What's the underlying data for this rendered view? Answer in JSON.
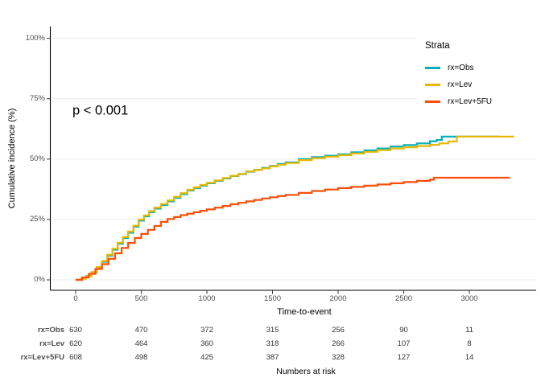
{
  "chart_data": {
    "type": "line",
    "subtype": "kaplan-meier-step-cumulative-incidence",
    "x_title": "Time-to-event",
    "y_title": "Cumulative incidence (%)",
    "p_value_annotation": "p < 0.001",
    "x_ticks": [
      0,
      500,
      1000,
      1500,
      2000,
      2500,
      3000
    ],
    "y_ticks_percent": [
      0,
      25,
      50,
      75,
      100
    ],
    "y_tick_labels": [
      "0%",
      "25%",
      "50%",
      "75%",
      "100%"
    ],
    "xlim": [
      0,
      3500
    ],
    "ylim_percent": [
      0,
      100
    ],
    "grid": "horizontal-only",
    "gridline_color": "#EBEBEB",
    "axis_color": "#000000",
    "tick_label_color": "#4d4d4d",
    "legend_position": "top-right-inside",
    "series": [
      {
        "name": "rx=Obs",
        "color": "#00AFBB",
        "points": [
          [
            0,
            0
          ],
          [
            40,
            0.6
          ],
          [
            80,
            1.6
          ],
          [
            120,
            3
          ],
          [
            160,
            5
          ],
          [
            200,
            7.5
          ],
          [
            240,
            10
          ],
          [
            280,
            12.5
          ],
          [
            320,
            15
          ],
          [
            360,
            17.3
          ],
          [
            400,
            19.5
          ],
          [
            440,
            22
          ],
          [
            480,
            24.5
          ],
          [
            520,
            26.3
          ],
          [
            560,
            28
          ],
          [
            600,
            29.5
          ],
          [
            650,
            31
          ],
          [
            700,
            32.5
          ],
          [
            750,
            34
          ],
          [
            800,
            35.5
          ],
          [
            850,
            37
          ],
          [
            900,
            38
          ],
          [
            950,
            39
          ],
          [
            1000,
            40
          ],
          [
            1060,
            41
          ],
          [
            1120,
            42
          ],
          [
            1180,
            43
          ],
          [
            1240,
            43.8
          ],
          [
            1300,
            44.8
          ],
          [
            1360,
            45.6
          ],
          [
            1420,
            46.4
          ],
          [
            1480,
            47.2
          ],
          [
            1540,
            48
          ],
          [
            1600,
            48.7
          ],
          [
            1700,
            50
          ],
          [
            1800,
            50.8
          ],
          [
            1900,
            51.4
          ],
          [
            2000,
            52
          ],
          [
            2100,
            52.8
          ],
          [
            2200,
            53.6
          ],
          [
            2300,
            54.4
          ],
          [
            2400,
            55.2
          ],
          [
            2500,
            55.8
          ],
          [
            2600,
            56.5
          ],
          [
            2700,
            57.4
          ],
          [
            2750,
            57.9
          ],
          [
            2790,
            59.3
          ],
          [
            3220,
            59.3
          ]
        ]
      },
      {
        "name": "rx=Lev",
        "color": "#E7B800",
        "points": [
          [
            0,
            0
          ],
          [
            40,
            0.5
          ],
          [
            80,
            1.5
          ],
          [
            120,
            3.2
          ],
          [
            160,
            5.3
          ],
          [
            200,
            7.8
          ],
          [
            240,
            10.4
          ],
          [
            280,
            12.9
          ],
          [
            320,
            15.4
          ],
          [
            360,
            17.7
          ],
          [
            400,
            20
          ],
          [
            440,
            22.4
          ],
          [
            480,
            24.9
          ],
          [
            520,
            26.7
          ],
          [
            560,
            28.4
          ],
          [
            600,
            29.9
          ],
          [
            650,
            31.4
          ],
          [
            700,
            32.9
          ],
          [
            750,
            34.4
          ],
          [
            800,
            35.9
          ],
          [
            850,
            37.3
          ],
          [
            900,
            38.3
          ],
          [
            950,
            39.3
          ],
          [
            1000,
            40.2
          ],
          [
            1060,
            41.2
          ],
          [
            1120,
            42.2
          ],
          [
            1180,
            43.1
          ],
          [
            1240,
            43.9
          ],
          [
            1300,
            44.9
          ],
          [
            1360,
            45.5
          ],
          [
            1420,
            46.2
          ],
          [
            1480,
            47
          ],
          [
            1540,
            47.7
          ],
          [
            1600,
            48.4
          ],
          [
            1700,
            49.6
          ],
          [
            1800,
            50.4
          ],
          [
            1900,
            51
          ],
          [
            2000,
            51.6
          ],
          [
            2100,
            52.3
          ],
          [
            2200,
            53
          ],
          [
            2300,
            53.7
          ],
          [
            2400,
            54.4
          ],
          [
            2500,
            54.9
          ],
          [
            2600,
            55.4
          ],
          [
            2700,
            55.9
          ],
          [
            2770,
            56.5
          ],
          [
            2840,
            57.3
          ],
          [
            2905,
            59.3
          ],
          [
            3340,
            59.3
          ]
        ]
      },
      {
        "name": "rx=Lev+5FU",
        "color": "#FC4E07",
        "points": [
          [
            0,
            0
          ],
          [
            50,
            1
          ],
          [
            100,
            2.5
          ],
          [
            150,
            4.5
          ],
          [
            200,
            6.5
          ],
          [
            250,
            8.7
          ],
          [
            300,
            11
          ],
          [
            350,
            13.2
          ],
          [
            400,
            15.3
          ],
          [
            450,
            17.3
          ],
          [
            500,
            19
          ],
          [
            550,
            20.7
          ],
          [
            600,
            22.3
          ],
          [
            650,
            24
          ],
          [
            700,
            25.2
          ],
          [
            750,
            26
          ],
          [
            800,
            26.8
          ],
          [
            850,
            27.4
          ],
          [
            900,
            28
          ],
          [
            950,
            28.6
          ],
          [
            1000,
            29.2
          ],
          [
            1060,
            29.9
          ],
          [
            1120,
            30.6
          ],
          [
            1180,
            31.3
          ],
          [
            1240,
            31.9
          ],
          [
            1300,
            32.5
          ],
          [
            1360,
            33.1
          ],
          [
            1420,
            33.7
          ],
          [
            1480,
            34.2
          ],
          [
            1540,
            34.7
          ],
          [
            1600,
            35.2
          ],
          [
            1700,
            36
          ],
          [
            1800,
            36.8
          ],
          [
            1900,
            37.4
          ],
          [
            2000,
            38
          ],
          [
            2100,
            38.5
          ],
          [
            2200,
            39
          ],
          [
            2300,
            39.5
          ],
          [
            2400,
            40
          ],
          [
            2500,
            40.5
          ],
          [
            2600,
            41
          ],
          [
            2700,
            41.5
          ],
          [
            2730,
            42.3
          ],
          [
            3310,
            42.3
          ]
        ]
      }
    ]
  },
  "legend": {
    "title": "Strata",
    "items": [
      {
        "label": "rx=Obs",
        "color": "#00AFBB"
      },
      {
        "label": "rx=Lev",
        "color": "#E7B800"
      },
      {
        "label": "rx=Lev+5FU",
        "color": "#FC4E07"
      }
    ]
  },
  "risk_table": {
    "title": "Numbers at risk",
    "times": [
      0,
      500,
      1000,
      1500,
      2000,
      2500,
      3000
    ],
    "rows": [
      {
        "label": "rx=Obs",
        "counts": [
          630,
          470,
          372,
          315,
          256,
          90,
          11
        ]
      },
      {
        "label": "rx=Lev",
        "counts": [
          620,
          464,
          360,
          318,
          266,
          107,
          8
        ]
      },
      {
        "label": "rx=Lev+5FU",
        "counts": [
          608,
          498,
          425,
          387,
          328,
          127,
          14
        ]
      }
    ]
  }
}
